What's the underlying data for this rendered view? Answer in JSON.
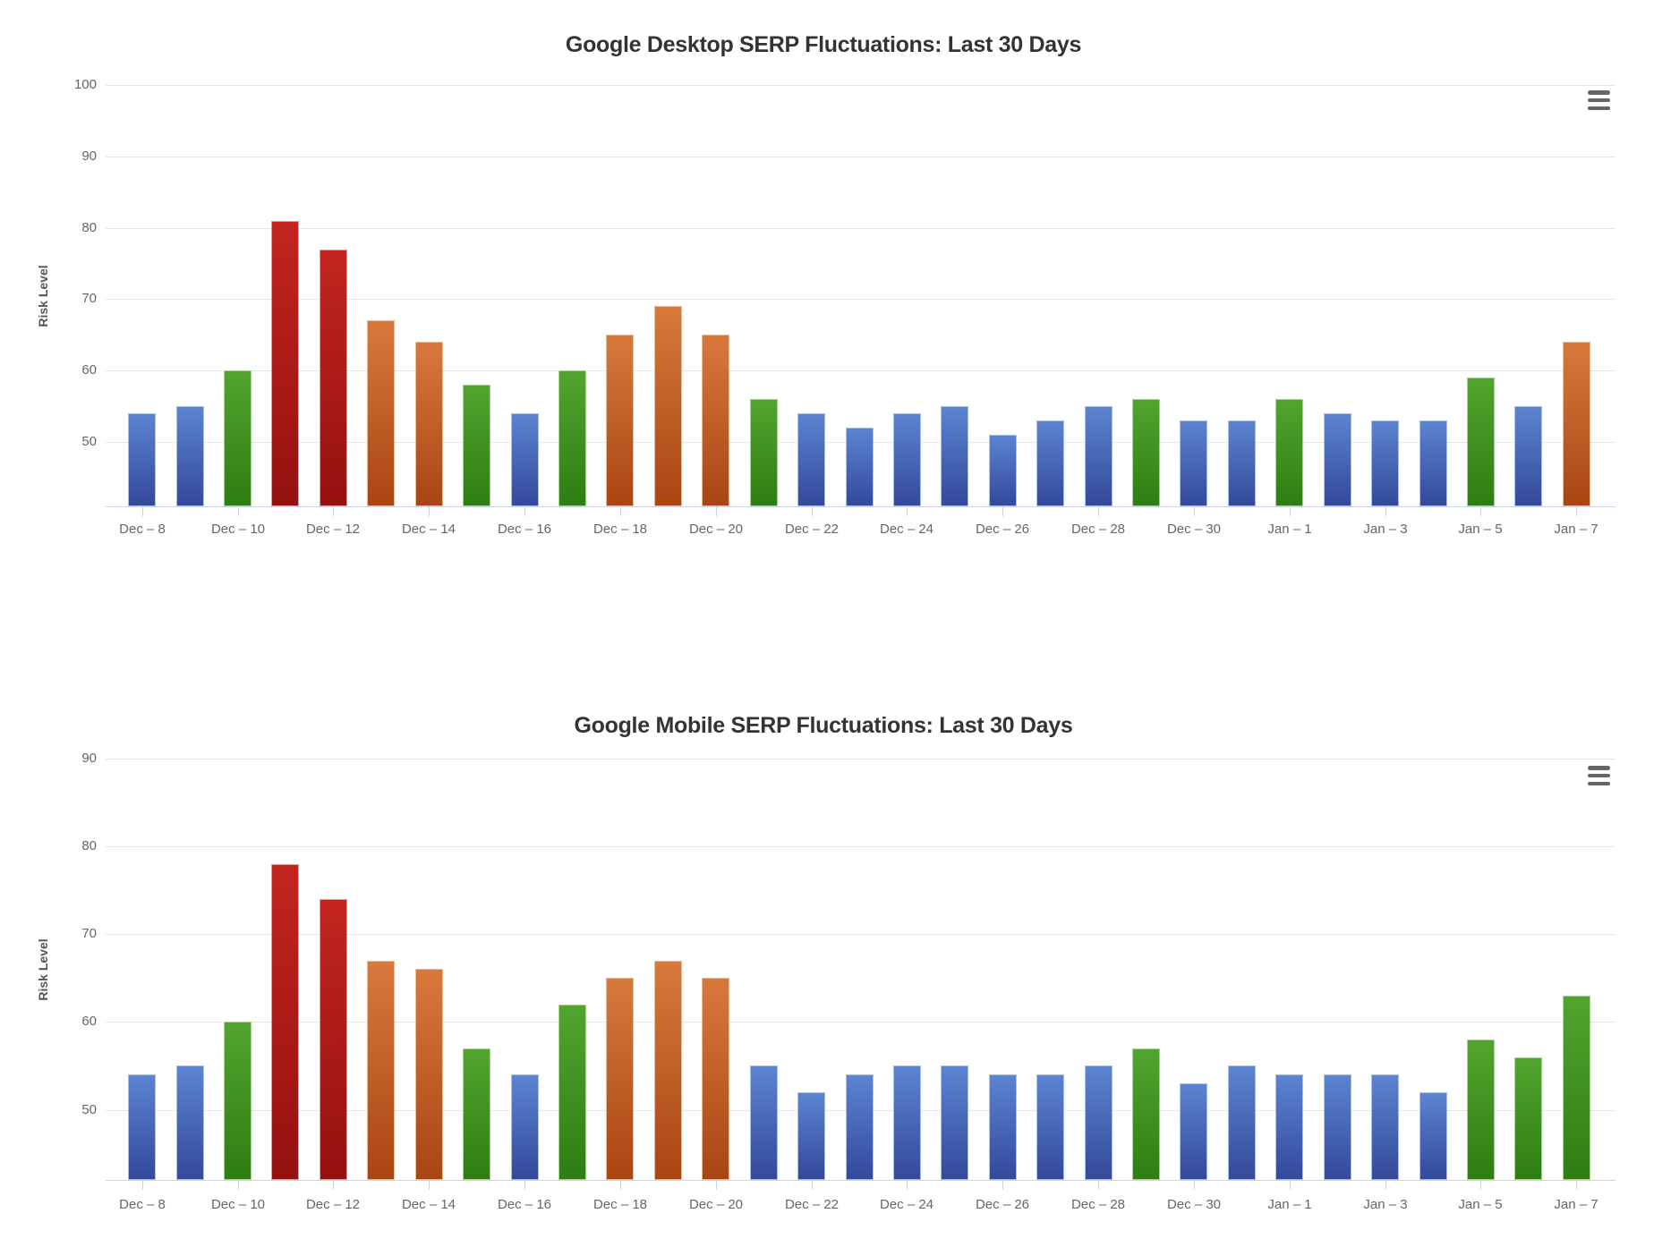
{
  "page": {
    "background": "#ffffff"
  },
  "chart_meta": {
    "context_menu_icon": "hamburger-menu-icon",
    "grid_color": "#e6e6e6",
    "axis_line_color": "#ccd6eb",
    "title_color": "#333333",
    "label_color": "#666666",
    "axis_title_color": "#555555",
    "icon_color": "#666666",
    "palette": {
      "blue": {
        "top": "#5b84d1",
        "bottom": "#34499b",
        "border": "#aabde5"
      },
      "green": {
        "top": "#52a52f",
        "bottom": "#2e7d12",
        "border": "#a8d194"
      },
      "orange": {
        "top": "#d8793c",
        "bottom": "#a94513",
        "border": "#e8bb9a"
      },
      "red": {
        "top": "#c3251f",
        "bottom": "#941110",
        "border": "#df9e9b"
      }
    }
  },
  "chart_data": [
    {
      "type": "bar",
      "title": "Google Desktop SERP Fluctuations: Last 30 Days",
      "xlabel": "",
      "ylabel": "Risk Level",
      "yticks": [
        100,
        90,
        80,
        70,
        60,
        50
      ],
      "ylim": [
        41,
        100
      ],
      "grid": true,
      "legend": "none",
      "label_step": 2,
      "categories": [
        "Dec – 8",
        "Dec – 9",
        "Dec – 10",
        "Dec – 11",
        "Dec – 12",
        "Dec – 13",
        "Dec – 14",
        "Dec – 15",
        "Dec – 16",
        "Dec – 17",
        "Dec – 18",
        "Dec – 19",
        "Dec – 20",
        "Dec – 21",
        "Dec – 22",
        "Dec – 23",
        "Dec – 24",
        "Dec – 25",
        "Dec – 26",
        "Dec – 27",
        "Dec – 28",
        "Dec – 29",
        "Dec – 30",
        "Dec – 31",
        "Jan – 1",
        "Jan – 2",
        "Jan – 3",
        "Jan – 4",
        "Jan – 5",
        "Jan – 6",
        "Jan – 7"
      ],
      "values": [
        54,
        55,
        60,
        81,
        77,
        67,
        64,
        58,
        54,
        60,
        65,
        69,
        65,
        56,
        54,
        52,
        54,
        55,
        51,
        53,
        55,
        56,
        53,
        53,
        56,
        54,
        53,
        53,
        59,
        55,
        64
      ],
      "point_colors": [
        "blue",
        "blue",
        "green",
        "red",
        "red",
        "orange",
        "orange",
        "green",
        "blue",
        "green",
        "orange",
        "orange",
        "orange",
        "green",
        "blue",
        "blue",
        "blue",
        "blue",
        "blue",
        "blue",
        "blue",
        "green",
        "blue",
        "blue",
        "green",
        "blue",
        "blue",
        "blue",
        "green",
        "blue",
        "orange"
      ]
    },
    {
      "type": "bar",
      "title": "Google Mobile SERP Fluctuations: Last 30 Days",
      "xlabel": "",
      "ylabel": "Risk Level",
      "yticks": [
        90,
        80,
        70,
        60,
        50
      ],
      "ylim": [
        42,
        90
      ],
      "grid": true,
      "legend": "none",
      "label_step": 2,
      "categories": [
        "Dec – 8",
        "Dec – 9",
        "Dec – 10",
        "Dec – 11",
        "Dec – 12",
        "Dec – 13",
        "Dec – 14",
        "Dec – 15",
        "Dec – 16",
        "Dec – 17",
        "Dec – 18",
        "Dec – 19",
        "Dec – 20",
        "Dec – 21",
        "Dec – 22",
        "Dec – 23",
        "Dec – 24",
        "Dec – 25",
        "Dec – 26",
        "Dec – 27",
        "Dec – 28",
        "Dec – 29",
        "Dec – 30",
        "Dec – 31",
        "Jan – 1",
        "Jan – 2",
        "Jan – 3",
        "Jan – 4",
        "Jan – 5",
        "Jan – 6",
        "Jan – 7"
      ],
      "values": [
        54,
        55,
        60,
        78,
        74,
        67,
        66,
        57,
        54,
        62,
        65,
        67,
        65,
        55,
        52,
        54,
        55,
        55,
        54,
        54,
        55,
        57,
        53,
        55,
        54,
        54,
        54,
        52,
        58,
        56,
        63
      ],
      "point_colors": [
        "blue",
        "blue",
        "green",
        "red",
        "red",
        "orange",
        "orange",
        "green",
        "blue",
        "green",
        "orange",
        "orange",
        "orange",
        "blue",
        "blue",
        "blue",
        "blue",
        "blue",
        "blue",
        "blue",
        "blue",
        "green",
        "blue",
        "blue",
        "blue",
        "blue",
        "blue",
        "blue",
        "green",
        "green",
        "green"
      ]
    }
  ]
}
